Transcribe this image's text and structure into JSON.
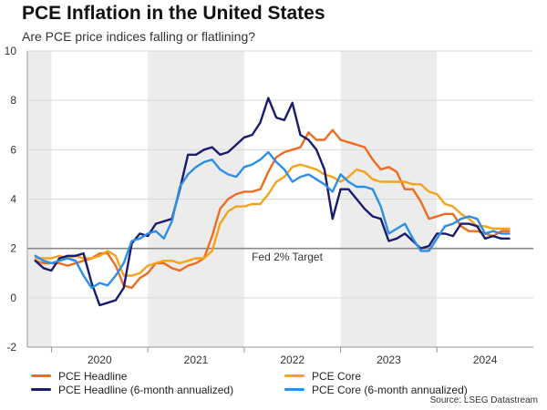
{
  "header": {
    "title": "PCE Inflation in the United States",
    "subtitle": "Are PCE price indices falling or flatlining?"
  },
  "source": "Source: LSEG Datastream",
  "colors": {
    "pce_headline": "#ef6c1e",
    "pce_core": "#f5a31a",
    "pce_headline_6m": "#1a1a6e",
    "pce_core_6m": "#2b8fe8",
    "target_line": "#888888",
    "band": "#ececec",
    "grid": "#d9d9d9"
  },
  "chart_data": {
    "type": "line",
    "title": "PCE Inflation in the United States",
    "ylim": [
      -2,
      10
    ],
    "yticks": [
      "-2",
      "0",
      "2",
      "4",
      "6",
      "8",
      "10"
    ],
    "ytick_values": [
      -2,
      0,
      2,
      4,
      6,
      8,
      10
    ],
    "x_start": 2019.25,
    "x_end": 2024.5,
    "xtick_labels": [
      "2020",
      "2021",
      "2022",
      "2023",
      "2024"
    ],
    "xtick_centers": [
      2020.0,
      2021.0,
      2022.0,
      2023.0,
      2024.0
    ],
    "year_boundaries": [
      2019.5,
      2020.5,
      2021.5,
      2022.5,
      2023.5
    ],
    "shaded_ranges": [
      [
        2019.25,
        2019.5
      ],
      [
        2020.5,
        2021.5
      ],
      [
        2022.5,
        2023.5
      ]
    ],
    "reference_line": {
      "value": 2,
      "label": "Fed 2% Target"
    },
    "series": [
      {
        "name": "PCE Headline",
        "key": "pce_headline",
        "x": [
          2019.333,
          2019.417,
          2019.5,
          2019.583,
          2019.667,
          2019.75,
          2019.833,
          2019.917,
          2020.0,
          2020.083,
          2020.167,
          2020.25,
          2020.333,
          2020.417,
          2020.5,
          2020.583,
          2020.667,
          2020.75,
          2020.833,
          2020.917,
          2021.0,
          2021.083,
          2021.167,
          2021.25,
          2021.333,
          2021.417,
          2021.5,
          2021.583,
          2021.667,
          2021.75,
          2021.833,
          2021.917,
          2022.0,
          2022.083,
          2022.167,
          2022.25,
          2022.333,
          2022.417,
          2022.5,
          2022.583,
          2022.667,
          2022.75,
          2022.833,
          2022.917,
          2023.0,
          2023.083,
          2023.167,
          2023.25,
          2023.333,
          2023.417,
          2023.5,
          2023.583,
          2023.667,
          2023.75,
          2023.833,
          2023.917,
          2024.0,
          2024.083,
          2024.167,
          2024.25
        ],
        "values": [
          1.5,
          1.4,
          1.4,
          1.4,
          1.3,
          1.4,
          1.5,
          1.6,
          1.8,
          1.8,
          1.3,
          0.5,
          0.4,
          0.8,
          1.0,
          1.4,
          1.4,
          1.2,
          1.1,
          1.3,
          1.4,
          1.6,
          2.5,
          3.6,
          4.0,
          4.2,
          4.3,
          4.3,
          4.4,
          5.1,
          5.7,
          5.9,
          6.0,
          6.1,
          6.7,
          6.4,
          6.4,
          6.8,
          6.4,
          6.3,
          6.2,
          6.1,
          5.6,
          5.2,
          5.3,
          5.1,
          4.4,
          4.4,
          3.9,
          3.2,
          3.3,
          3.4,
          3.4,
          2.9,
          2.7,
          2.7,
          2.6,
          2.5,
          2.7,
          2.7
        ]
      },
      {
        "name": "PCE Core",
        "key": "pce_core",
        "x": [
          2019.333,
          2019.417,
          2019.5,
          2019.583,
          2019.667,
          2019.75,
          2019.833,
          2019.917,
          2020.0,
          2020.083,
          2020.167,
          2020.25,
          2020.333,
          2020.417,
          2020.5,
          2020.583,
          2020.667,
          2020.75,
          2020.833,
          2020.917,
          2021.0,
          2021.083,
          2021.167,
          2021.25,
          2021.333,
          2021.417,
          2021.5,
          2021.583,
          2021.667,
          2021.75,
          2021.833,
          2021.917,
          2022.0,
          2022.083,
          2022.167,
          2022.25,
          2022.333,
          2022.417,
          2022.5,
          2022.583,
          2022.667,
          2022.75,
          2022.833,
          2022.917,
          2023.0,
          2023.083,
          2023.167,
          2023.25,
          2023.333,
          2023.417,
          2023.5,
          2023.583,
          2023.667,
          2023.75,
          2023.833,
          2023.917,
          2024.0,
          2024.083,
          2024.167,
          2024.25
        ],
        "values": [
          1.6,
          1.6,
          1.6,
          1.7,
          1.6,
          1.7,
          1.6,
          1.6,
          1.7,
          1.9,
          1.7,
          0.9,
          0.9,
          1.0,
          1.3,
          1.4,
          1.5,
          1.5,
          1.4,
          1.5,
          1.6,
          1.6,
          1.9,
          3.0,
          3.5,
          3.7,
          3.7,
          3.8,
          3.8,
          4.2,
          4.7,
          4.9,
          5.3,
          5.4,
          5.3,
          5.2,
          5.0,
          4.9,
          4.7,
          4.9,
          5.2,
          5.1,
          4.8,
          4.7,
          4.7,
          4.7,
          4.7,
          4.6,
          4.6,
          4.3,
          4.2,
          3.8,
          3.7,
          3.4,
          3.2,
          2.9,
          2.9,
          2.8,
          2.8,
          2.8
        ]
      },
      {
        "name": "PCE Headline (6-month annualized)",
        "key": "pce_headline_6m",
        "x": [
          2019.333,
          2019.417,
          2019.5,
          2019.583,
          2019.667,
          2019.75,
          2019.833,
          2019.917,
          2020.0,
          2020.083,
          2020.167,
          2020.25,
          2020.333,
          2020.417,
          2020.5,
          2020.583,
          2020.667,
          2020.75,
          2020.833,
          2020.917,
          2021.0,
          2021.083,
          2021.167,
          2021.25,
          2021.333,
          2021.417,
          2021.5,
          2021.583,
          2021.667,
          2021.75,
          2021.833,
          2021.917,
          2022.0,
          2022.083,
          2022.167,
          2022.25,
          2022.333,
          2022.417,
          2022.5,
          2022.583,
          2022.667,
          2022.75,
          2022.833,
          2022.917,
          2023.0,
          2023.083,
          2023.167,
          2023.25,
          2023.333,
          2023.417,
          2023.5,
          2023.583,
          2023.667,
          2023.75,
          2023.833,
          2023.917,
          2024.0,
          2024.083,
          2024.167,
          2024.25
        ],
        "values": [
          1.5,
          1.2,
          1.1,
          1.6,
          1.7,
          1.7,
          1.8,
          0.6,
          -0.3,
          -0.2,
          -0.1,
          0.4,
          2.2,
          2.6,
          2.5,
          3.0,
          3.1,
          3.2,
          4.4,
          5.8,
          5.8,
          6.0,
          6.1,
          5.8,
          5.9,
          6.2,
          6.5,
          6.6,
          7.1,
          8.1,
          7.3,
          7.2,
          7.9,
          6.6,
          6.4,
          6.0,
          5.2,
          3.2,
          4.4,
          4.4,
          4.0,
          3.6,
          3.3,
          3.2,
          2.3,
          2.4,
          2.6,
          2.3,
          2.0,
          2.1,
          2.6,
          2.6,
          2.5,
          3.0,
          3.0,
          2.9,
          2.4,
          2.5,
          2.4,
          2.4
        ]
      },
      {
        "name": "PCE Core (6-month annualized)",
        "key": "pce_core_6m",
        "x": [
          2019.333,
          2019.417,
          2019.5,
          2019.583,
          2019.667,
          2019.75,
          2019.833,
          2019.917,
          2020.0,
          2020.083,
          2020.167,
          2020.25,
          2020.333,
          2020.417,
          2020.5,
          2020.583,
          2020.667,
          2020.75,
          2020.833,
          2020.917,
          2021.0,
          2021.083,
          2021.167,
          2021.25,
          2021.333,
          2021.417,
          2021.5,
          2021.583,
          2021.667,
          2021.75,
          2021.833,
          2021.917,
          2022.0,
          2022.083,
          2022.167,
          2022.25,
          2022.333,
          2022.417,
          2022.5,
          2022.583,
          2022.667,
          2022.75,
          2022.833,
          2022.917,
          2023.0,
          2023.083,
          2023.167,
          2023.25,
          2023.333,
          2023.417,
          2023.5,
          2023.583,
          2023.667,
          2023.75,
          2023.833,
          2023.917,
          2024.0,
          2024.083,
          2024.167,
          2024.25
        ],
        "values": [
          1.7,
          1.5,
          1.4,
          1.5,
          1.6,
          1.5,
          0.9,
          0.4,
          0.6,
          0.5,
          0.9,
          1.4,
          2.3,
          2.4,
          2.6,
          2.7,
          2.4,
          3.1,
          4.5,
          5.0,
          5.3,
          5.5,
          5.6,
          5.2,
          5.0,
          4.9,
          5.3,
          5.4,
          5.6,
          5.9,
          5.5,
          5.2,
          4.7,
          4.9,
          5.0,
          4.8,
          4.6,
          4.3,
          5.0,
          4.7,
          4.5,
          4.5,
          4.4,
          3.7,
          2.6,
          2.8,
          3.0,
          2.4,
          1.9,
          1.9,
          2.4,
          2.9,
          3.0,
          3.2,
          3.3,
          3.2,
          2.6,
          2.7,
          2.6,
          2.6
        ]
      }
    ]
  }
}
